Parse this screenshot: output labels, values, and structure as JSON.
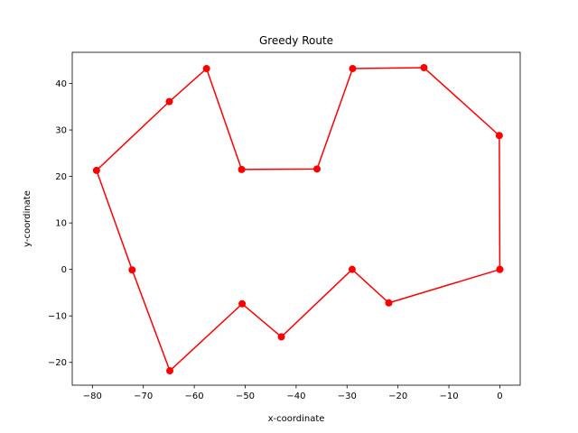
{
  "chart_data": {
    "type": "line",
    "title": "Greedy Route",
    "xlabel": "x-coordinate",
    "ylabel": "y-coordinate",
    "xlim": [
      -83.96,
      4.0
    ],
    "ylim": [
      -24.9,
      46.7
    ],
    "xticks": [
      -80,
      -70,
      -60,
      -50,
      -40,
      -30,
      -20,
      -10,
      0
    ],
    "yticks": [
      -20,
      -10,
      0,
      10,
      20,
      30,
      40
    ],
    "grid": false,
    "series": [
      {
        "color": "#ff0000",
        "marker": "circle",
        "x": [
          0.0,
          -21.8,
          -29.0,
          -42.9,
          -50.6,
          -64.8,
          -72.2,
          -79.2,
          -64.9,
          -57.6,
          -50.7,
          -35.9,
          -28.9,
          -14.9,
          -0.1,
          0.0
        ],
        "y": [
          0.0,
          -7.2,
          0.0,
          -14.5,
          -7.4,
          -21.8,
          -0.1,
          21.3,
          36.1,
          43.2,
          21.5,
          21.6,
          43.2,
          43.4,
          28.8,
          0.0
        ]
      }
    ]
  }
}
